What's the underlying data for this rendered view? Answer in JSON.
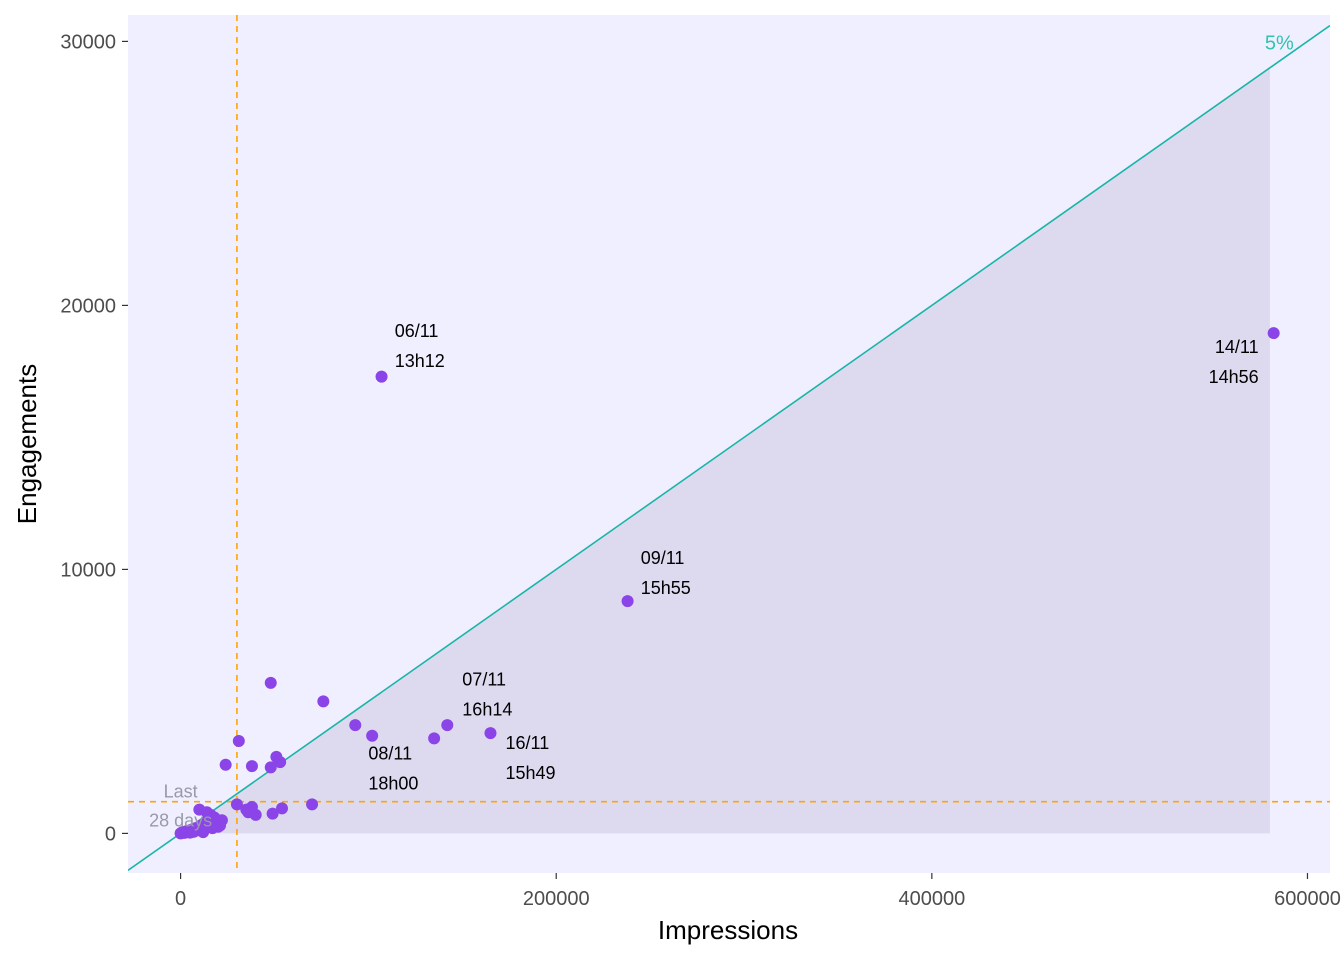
{
  "chart_data": {
    "type": "scatter",
    "xlabel": "Impressions",
    "ylabel": "Engagements",
    "xlim": [
      -28000,
      612000
    ],
    "ylim": [
      -1500,
      31000
    ],
    "x_ticks": [
      0,
      200000,
      400000,
      600000
    ],
    "y_ticks": [
      0,
      10000,
      20000,
      30000
    ],
    "x_tick_labels": [
      "0",
      "200000",
      "400000",
      "600000"
    ],
    "y_tick_labels": [
      "0",
      "10000",
      "20000",
      "30000"
    ],
    "grid": false,
    "legend": "none",
    "colors": {
      "panel": "#f0efff",
      "shade": "#dddaf0",
      "points": "#8b44e8",
      "ref_line": "#1ab5a8",
      "ref_label": "#2ec4b0",
      "avg_lines": "#ffa500",
      "avg_label": "#9999aa"
    },
    "reference_line": {
      "slope": 0.05,
      "label": "5%",
      "label_x": 585000,
      "label_y": 29700
    },
    "shaded_region": {
      "x_max": 580000
    },
    "avg_lines": {
      "x": 30000,
      "y": 1200,
      "label_lines": [
        "Last",
        "28 days"
      ],
      "label_x": 0,
      "label_y": 1050
    },
    "points": [
      {
        "x": 0,
        "y": 0
      },
      {
        "x": 1000,
        "y": 50
      },
      {
        "x": 2000,
        "y": 20
      },
      {
        "x": 3000,
        "y": 80
      },
      {
        "x": 4000,
        "y": 100
      },
      {
        "x": 5000,
        "y": 30
      },
      {
        "x": 6000,
        "y": 150
      },
      {
        "x": 7000,
        "y": 60
      },
      {
        "x": 8000,
        "y": 200
      },
      {
        "x": 9000,
        "y": 120
      },
      {
        "x": 10000,
        "y": 900
      },
      {
        "x": 11000,
        "y": 300
      },
      {
        "x": 12000,
        "y": 50
      },
      {
        "x": 13000,
        "y": 400
      },
      {
        "x": 14000,
        "y": 800
      },
      {
        "x": 15000,
        "y": 500
      },
      {
        "x": 16000,
        "y": 700
      },
      {
        "x": 17000,
        "y": 200
      },
      {
        "x": 18000,
        "y": 600
      },
      {
        "x": 19000,
        "y": 400
      },
      {
        "x": 20000,
        "y": 250
      },
      {
        "x": 21000,
        "y": 300
      },
      {
        "x": 22000,
        "y": 500
      },
      {
        "x": 24000,
        "y": 2600
      },
      {
        "x": 30000,
        "y": 1100
      },
      {
        "x": 31000,
        "y": 3500
      },
      {
        "x": 35000,
        "y": 900
      },
      {
        "x": 36000,
        "y": 800
      },
      {
        "x": 38000,
        "y": 2550
      },
      {
        "x": 38000,
        "y": 1000
      },
      {
        "x": 40000,
        "y": 700
      },
      {
        "x": 48000,
        "y": 2500
      },
      {
        "x": 48000,
        "y": 5700
      },
      {
        "x": 49000,
        "y": 750
      },
      {
        "x": 51000,
        "y": 2900
      },
      {
        "x": 53000,
        "y": 2700
      },
      {
        "x": 54000,
        "y": 950
      },
      {
        "x": 70000,
        "y": 1100
      },
      {
        "x": 76000,
        "y": 5000
      },
      {
        "x": 93000,
        "y": 4100
      },
      {
        "x": 102000,
        "y": 3700
      },
      {
        "x": 107000,
        "y": 17300
      },
      {
        "x": 135000,
        "y": 3600
      },
      {
        "x": 142000,
        "y": 4100
      },
      {
        "x": 165000,
        "y": 3800
      },
      {
        "x": 238000,
        "y": 8800
      },
      {
        "x": 582000,
        "y": 18950
      }
    ],
    "annotations": [
      {
        "lines": [
          "06/11",
          "13h12"
        ],
        "x": 114000,
        "y": 18800,
        "anchor": "start"
      },
      {
        "lines": [
          "14/11",
          "14h56"
        ],
        "x": 574000,
        "y": 18200,
        "anchor": "end"
      },
      {
        "lines": [
          "09/11",
          "15h55"
        ],
        "x": 245000,
        "y": 10200,
        "anchor": "start"
      },
      {
        "lines": [
          "07/11",
          "16h14"
        ],
        "x": 150000,
        "y": 5600,
        "anchor": "start"
      },
      {
        "lines": [
          "08/11",
          "18h00"
        ],
        "x": 100000,
        "y": 2800,
        "anchor": "start"
      },
      {
        "lines": [
          "16/11",
          "15h49"
        ],
        "x": 173000,
        "y": 3200,
        "anchor": "start"
      }
    ]
  }
}
